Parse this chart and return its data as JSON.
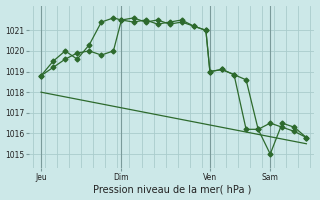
{
  "background_color": "#cce8e8",
  "grid_color": "#aacccc",
  "line_color": "#2d6a2d",
  "title": "Pression niveau de la mer( hPa )",
  "ylabel_values": [
    1015,
    1016,
    1017,
    1018,
    1019,
    1020,
    1021
  ],
  "ylim": [
    1014.3,
    1022.2
  ],
  "xlim": [
    -2,
    140
  ],
  "day_labels": [
    "Jeu",
    "Dim",
    "Ven",
    "Sam"
  ],
  "day_positions": [
    4,
    44,
    88,
    118
  ],
  "vline_positions": [
    4,
    44,
    88,
    118
  ],
  "line1_x": [
    4,
    10,
    16,
    22,
    28,
    34,
    40,
    44,
    50,
    56,
    62,
    68,
    74,
    80,
    86,
    88,
    94,
    100,
    106,
    112,
    118,
    124,
    130,
    136
  ],
  "line1_y": [
    1018.8,
    1019.2,
    1019.6,
    1019.9,
    1020.0,
    1019.8,
    1020.0,
    1021.5,
    1021.6,
    1021.4,
    1021.5,
    1021.3,
    1021.4,
    1021.2,
    1021.0,
    1019.0,
    1019.1,
    1018.85,
    1018.6,
    1016.2,
    1016.5,
    1016.3,
    1016.1,
    1015.8
  ],
  "line2_x": [
    4,
    10,
    16,
    22,
    28,
    34,
    40,
    44,
    50,
    56,
    62,
    68,
    74,
    80,
    86,
    88,
    94,
    100,
    106,
    112,
    118,
    124,
    130,
    136
  ],
  "line2_y": [
    1018.8,
    1019.5,
    1020.0,
    1019.6,
    1020.3,
    1021.4,
    1021.6,
    1021.5,
    1021.4,
    1021.5,
    1021.3,
    1021.4,
    1021.5,
    1021.2,
    1021.0,
    1019.0,
    1019.1,
    1018.85,
    1016.2,
    1016.2,
    1015.0,
    1016.5,
    1016.3,
    1015.8
  ],
  "line3_x": [
    4,
    136
  ],
  "line3_y": [
    1018.0,
    1015.5
  ],
  "marker_size": 2.5,
  "marker_style": "D",
  "linewidth": 0.9,
  "tick_fontsize": 5.5,
  "title_fontsize": 7
}
